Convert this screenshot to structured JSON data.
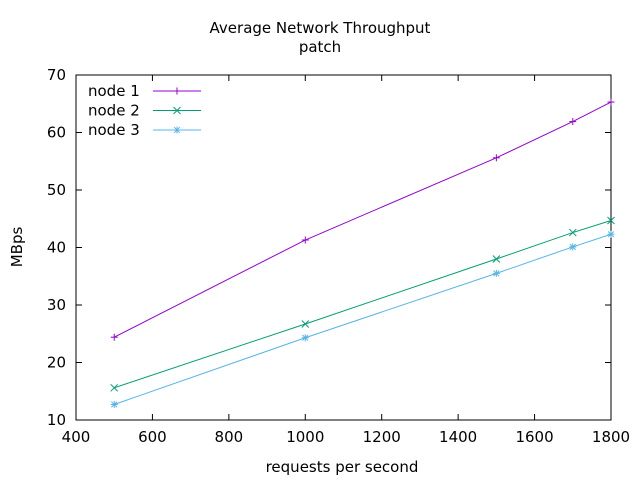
{
  "chart_data": {
    "type": "line",
    "title": "Average Network Throughput",
    "subtitle": "patch",
    "xlabel": "requests per second",
    "ylabel": "MBps",
    "xlim": [
      400,
      1800
    ],
    "ylim": [
      10,
      70
    ],
    "x_ticks": [
      400,
      600,
      800,
      1000,
      1200,
      1400,
      1600,
      1800
    ],
    "y_ticks": [
      10,
      20,
      30,
      40,
      50,
      60,
      70
    ],
    "grid": false,
    "legend_position": "top-left",
    "series": [
      {
        "name": "node 1",
        "color": "#9400d3",
        "marker": "plus",
        "x": [
          500,
          1000,
          1500,
          1700,
          1800
        ],
        "y": [
          24.4,
          41.3,
          55.6,
          61.9,
          65.3
        ]
      },
      {
        "name": "node 2",
        "color": "#009e73",
        "marker": "cross",
        "x": [
          500,
          1000,
          1500,
          1700,
          1800
        ],
        "y": [
          15.6,
          26.7,
          38.0,
          42.6,
          44.7
        ]
      },
      {
        "name": "node 3",
        "color": "#56b4e9",
        "marker": "star",
        "x": [
          500,
          1000,
          1500,
          1700,
          1800
        ],
        "y": [
          12.7,
          24.3,
          35.5,
          40.1,
          42.3
        ]
      }
    ]
  }
}
